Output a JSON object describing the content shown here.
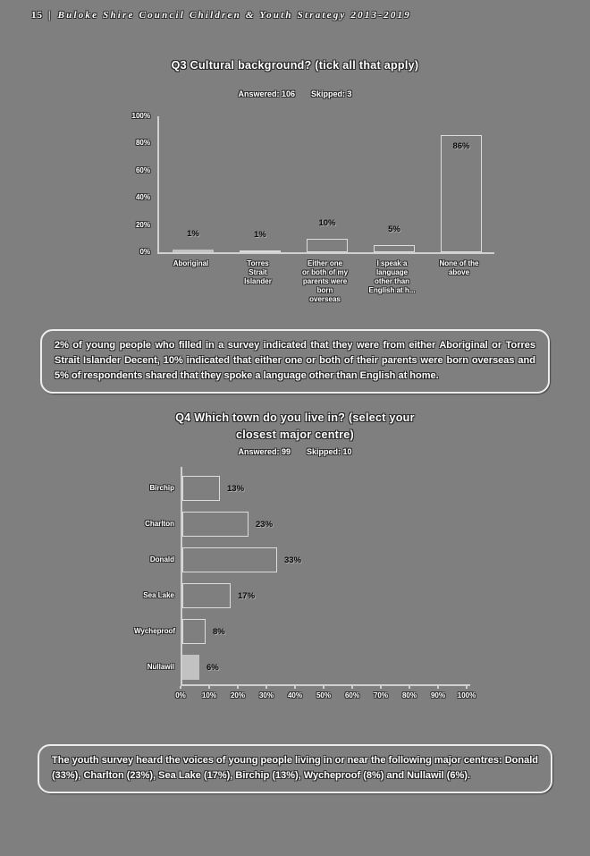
{
  "header": {
    "page_number": "15",
    "separator": "|",
    "title": "Buloke Shire Council Children & Youth Strategy 2013-2019"
  },
  "q3": {
    "title": "Q3 Cultural background? (tick all that apply)",
    "answered": "Answered: 106",
    "skipped": "Skipped: 3"
  },
  "q4": {
    "title_line1": "Q4 Which town do you live in? (select your",
    "title_line2": "closest major centre)",
    "answered": "Answered: 99",
    "skipped": "Skipped: 10"
  },
  "callouts": {
    "q3": "2% of young people who filled in a survey indicated that they were from either Aboriginal or Torres Strait Islander Decent, 10% indicated that either one or both of their parents were born overseas and 5% of respondents shared that they spoke a language other than English at home.",
    "q4": "The youth survey heard the voices of young people living in or near the following major centres: Donald (33%), Charlton (23%), Sea Lake (17%), Birchip (13%), Wycheproof (8%) and Nullawil (6%)."
  },
  "colors": {
    "background": "#7f7f7f",
    "axis_line": "#d0d0d0",
    "bar_outline": "#dcdcdc",
    "bar_fill": "#c2c2c2",
    "value_label": "#0b0b0b",
    "text": "#ffffff"
  },
  "chart_data": [
    {
      "type": "bar",
      "orientation": "vertical",
      "title": "Q3 Cultural background? (tick all that apply)",
      "categories": [
        "Aboriginal",
        "Torres\nStrait\nIslander",
        "Either one\nor both of my\nparents were\nborn\noverseas",
        "I speak a\nlanguage\nother than\nEnglish at h...",
        "None of the\nabove"
      ],
      "values": [
        1,
        1,
        10,
        5,
        86
      ],
      "labels": [
        "1%",
        "1%",
        "10%",
        "5%",
        "86%"
      ],
      "filled": [
        true,
        false,
        false,
        false,
        false
      ],
      "ylim": [
        0,
        100
      ],
      "yticks": [
        "100%",
        "80%",
        "60%",
        "40%",
        "20%",
        "0%"
      ],
      "grid": false,
      "legend": false
    },
    {
      "type": "bar",
      "orientation": "horizontal",
      "title": "Q4 Which town do you live in? (select your closest major centre)",
      "categories": [
        "Birchip",
        "Charlton",
        "Donald",
        "Sea Lake",
        "Wycheproof",
        "Nullawil"
      ],
      "values": [
        13,
        23,
        33,
        17,
        8,
        6
      ],
      "labels": [
        "13%",
        "23%",
        "33%",
        "17%",
        "8%",
        "6%"
      ],
      "filled": [
        false,
        false,
        false,
        false,
        false,
        true
      ],
      "xlim": [
        0,
        100
      ],
      "xticks": [
        "0%",
        "10%",
        "20%",
        "30%",
        "40%",
        "50%",
        "60%",
        "70%",
        "80%",
        "90%",
        "100%"
      ],
      "grid": false,
      "legend": false
    }
  ]
}
